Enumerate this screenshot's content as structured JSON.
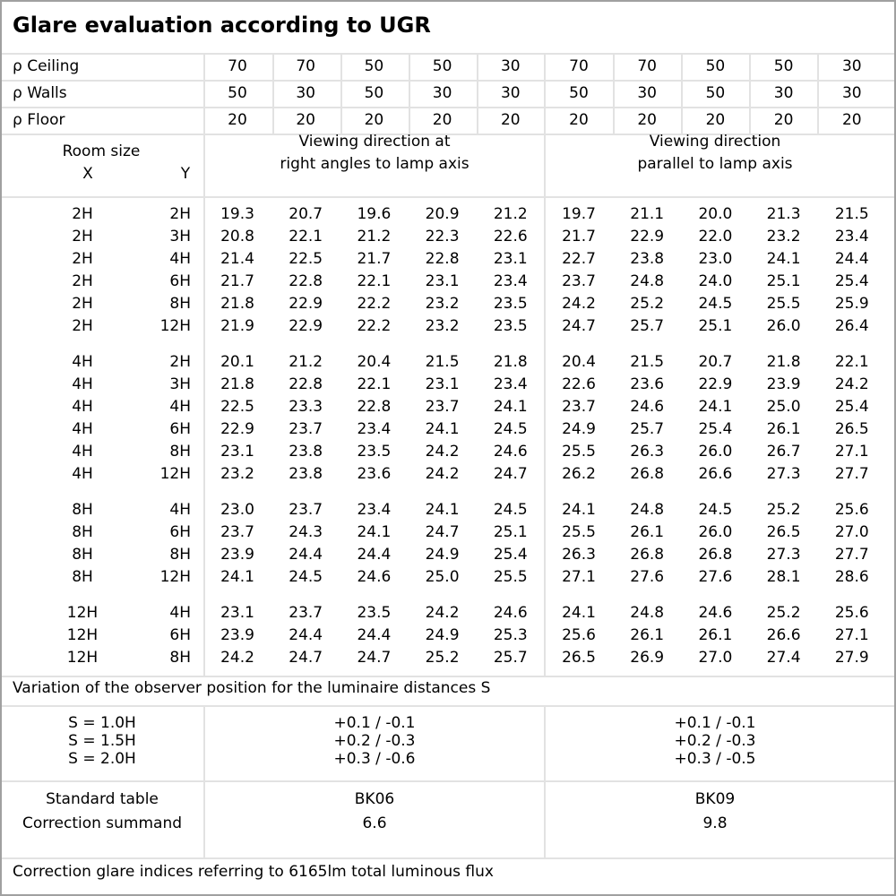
{
  "title": "Glare evaluation according to UGR",
  "reflectances": [
    {
      "label": "ρ Ceiling",
      "values": [
        "70",
        "70",
        "50",
        "50",
        "30",
        "70",
        "70",
        "50",
        "50",
        "30"
      ]
    },
    {
      "label": "ρ Walls",
      "values": [
        "50",
        "30",
        "50",
        "30",
        "30",
        "50",
        "30",
        "50",
        "30",
        "30"
      ]
    },
    {
      "label": "ρ Floor",
      "values": [
        "20",
        "20",
        "20",
        "20",
        "20",
        "20",
        "20",
        "20",
        "20",
        "20"
      ]
    }
  ],
  "header": {
    "room_size": "Room size",
    "x": "X",
    "y": "Y",
    "dir_right_1": "Viewing direction at",
    "dir_right_2": "right angles to lamp axis",
    "dir_parallel_1": "Viewing direction",
    "dir_parallel_2": "parallel to lamp axis"
  },
  "groups": [
    {
      "rows": [
        {
          "x": "2H",
          "y": "2H",
          "v": [
            "19.3",
            "20.7",
            "19.6",
            "20.9",
            "21.2",
            "19.7",
            "21.1",
            "20.0",
            "21.3",
            "21.5"
          ]
        },
        {
          "x": "2H",
          "y": "3H",
          "v": [
            "20.8",
            "22.1",
            "21.2",
            "22.3",
            "22.6",
            "21.7",
            "22.9",
            "22.0",
            "23.2",
            "23.4"
          ]
        },
        {
          "x": "2H",
          "y": "4H",
          "v": [
            "21.4",
            "22.5",
            "21.7",
            "22.8",
            "23.1",
            "22.7",
            "23.8",
            "23.0",
            "24.1",
            "24.4"
          ]
        },
        {
          "x": "2H",
          "y": "6H",
          "v": [
            "21.7",
            "22.8",
            "22.1",
            "23.1",
            "23.4",
            "23.7",
            "24.8",
            "24.0",
            "25.1",
            "25.4"
          ]
        },
        {
          "x": "2H",
          "y": "8H",
          "v": [
            "21.8",
            "22.9",
            "22.2",
            "23.2",
            "23.5",
            "24.2",
            "25.2",
            "24.5",
            "25.5",
            "25.9"
          ]
        },
        {
          "x": "2H",
          "y": "12H",
          "v": [
            "21.9",
            "22.9",
            "22.2",
            "23.2",
            "23.5",
            "24.7",
            "25.7",
            "25.1",
            "26.0",
            "26.4"
          ]
        }
      ]
    },
    {
      "rows": [
        {
          "x": "4H",
          "y": "2H",
          "v": [
            "20.1",
            "21.2",
            "20.4",
            "21.5",
            "21.8",
            "20.4",
            "21.5",
            "20.7",
            "21.8",
            "22.1"
          ]
        },
        {
          "x": "4H",
          "y": "3H",
          "v": [
            "21.8",
            "22.8",
            "22.1",
            "23.1",
            "23.4",
            "22.6",
            "23.6",
            "22.9",
            "23.9",
            "24.2"
          ]
        },
        {
          "x": "4H",
          "y": "4H",
          "v": [
            "22.5",
            "23.3",
            "22.8",
            "23.7",
            "24.1",
            "23.7",
            "24.6",
            "24.1",
            "25.0",
            "25.4"
          ]
        },
        {
          "x": "4H",
          "y": "6H",
          "v": [
            "22.9",
            "23.7",
            "23.4",
            "24.1",
            "24.5",
            "24.9",
            "25.7",
            "25.4",
            "26.1",
            "26.5"
          ]
        },
        {
          "x": "4H",
          "y": "8H",
          "v": [
            "23.1",
            "23.8",
            "23.5",
            "24.2",
            "24.6",
            "25.5",
            "26.3",
            "26.0",
            "26.7",
            "27.1"
          ]
        },
        {
          "x": "4H",
          "y": "12H",
          "v": [
            "23.2",
            "23.8",
            "23.6",
            "24.2",
            "24.7",
            "26.2",
            "26.8",
            "26.6",
            "27.3",
            "27.7"
          ]
        }
      ]
    },
    {
      "rows": [
        {
          "x": "8H",
          "y": "4H",
          "v": [
            "23.0",
            "23.7",
            "23.4",
            "24.1",
            "24.5",
            "24.1",
            "24.8",
            "24.5",
            "25.2",
            "25.6"
          ]
        },
        {
          "x": "8H",
          "y": "6H",
          "v": [
            "23.7",
            "24.3",
            "24.1",
            "24.7",
            "25.1",
            "25.5",
            "26.1",
            "26.0",
            "26.5",
            "27.0"
          ]
        },
        {
          "x": "8H",
          "y": "8H",
          "v": [
            "23.9",
            "24.4",
            "24.4",
            "24.9",
            "25.4",
            "26.3",
            "26.8",
            "26.8",
            "27.3",
            "27.7"
          ]
        },
        {
          "x": "8H",
          "y": "12H",
          "v": [
            "24.1",
            "24.5",
            "24.6",
            "25.0",
            "25.5",
            "27.1",
            "27.6",
            "27.6",
            "28.1",
            "28.6"
          ]
        }
      ]
    },
    {
      "rows": [
        {
          "x": "12H",
          "y": "4H",
          "v": [
            "23.1",
            "23.7",
            "23.5",
            "24.2",
            "24.6",
            "24.1",
            "24.8",
            "24.6",
            "25.2",
            "25.6"
          ]
        },
        {
          "x": "12H",
          "y": "6H",
          "v": [
            "23.9",
            "24.4",
            "24.4",
            "24.9",
            "25.3",
            "25.6",
            "26.1",
            "26.1",
            "26.6",
            "27.1"
          ]
        },
        {
          "x": "12H",
          "y": "8H",
          "v": [
            "24.2",
            "24.7",
            "24.7",
            "25.2",
            "25.7",
            "26.5",
            "26.9",
            "27.0",
            "27.4",
            "27.9"
          ]
        }
      ]
    }
  ],
  "variation": {
    "label": "Variation of the observer position for the luminaire distances S",
    "rows": [
      {
        "s": "S = 1.0H",
        "right": "+0.1 / -0.1",
        "parallel": "+0.1 / -0.1"
      },
      {
        "s": "S = 1.5H",
        "right": "+0.2 / -0.3",
        "parallel": "+0.2 / -0.3"
      },
      {
        "s": "S = 2.0H",
        "right": "+0.3 / -0.6",
        "parallel": "+0.3 / -0.5"
      }
    ]
  },
  "standard": {
    "label_table": "Standard table",
    "label_correction": "Correction summand",
    "right_table": "BK06",
    "right_correction": "6.6",
    "parallel_table": "BK09",
    "parallel_correction": "9.8"
  },
  "footer": "Correction glare indices referring to 6165lm total luminous flux"
}
